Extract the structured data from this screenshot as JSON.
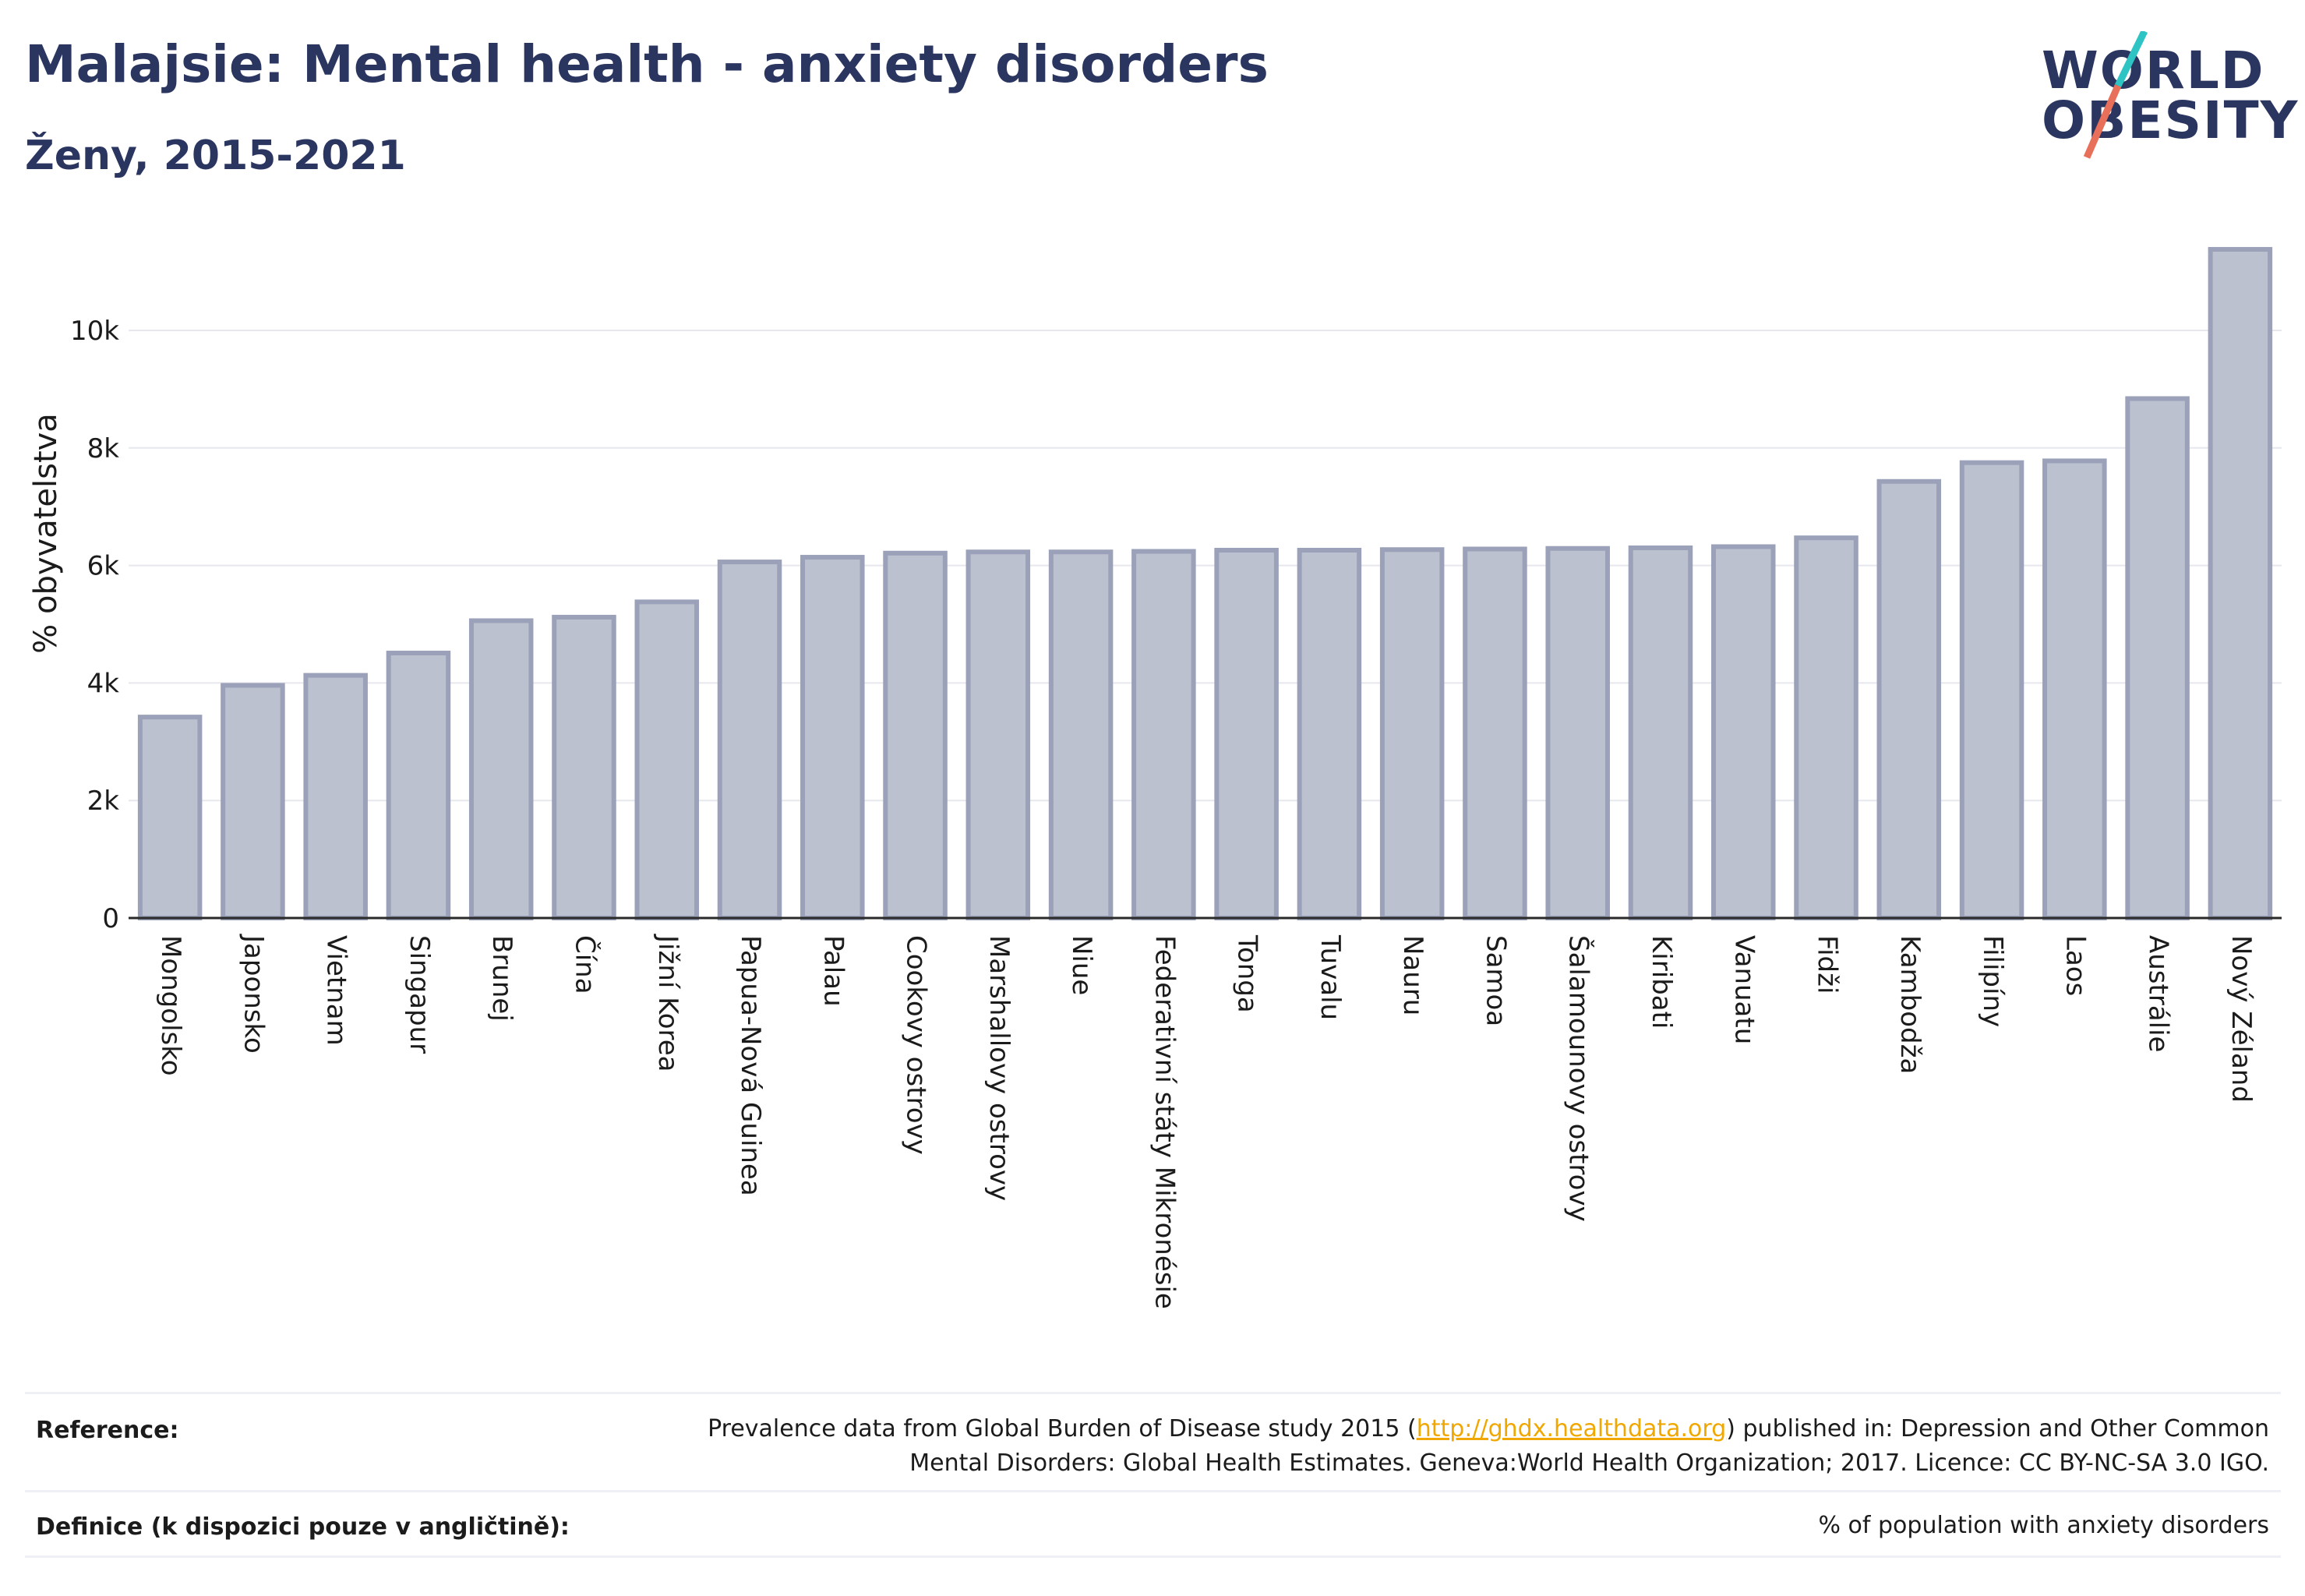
{
  "header": {
    "title": "Malajsie: Mental health - anxiety disorders",
    "subtitle": "Ženy, 2015-2021"
  },
  "logo": {
    "line1": "WORLD",
    "line2": "OBESITY",
    "accent_colors": [
      "#2ec4c4",
      "#e8705a"
    ]
  },
  "chart_data": {
    "type": "bar",
    "title": "",
    "xlabel": "",
    "ylabel": "% obyvatelstva",
    "ylim": [
      0,
      11500
    ],
    "yticks": [
      0,
      2000,
      4000,
      6000,
      8000,
      10000
    ],
    "ytick_labels": [
      "0",
      "2k",
      "4k",
      "6k",
      "8k",
      "10k"
    ],
    "grid": true,
    "bar_color": "#bcc1d0",
    "bar_edge_color": "#9aa1b8",
    "categories": [
      "Mongolsko",
      "Japonsko",
      "Vietnam",
      "Singapur",
      "Brunej",
      "Čína",
      "Jižní Korea",
      "Papua-Nová Guinea",
      "Palau",
      "Cookovy ostrovy",
      "Marshallovy ostrovy",
      "Niue",
      "Federativní státy Mikronésie",
      "Tonga",
      "Tuvalu",
      "Nauru",
      "Samoa",
      "Šalamounovy ostrovy",
      "Kiribati",
      "Vanuatu",
      "Fidži",
      "Kambodža",
      "Filipíny",
      "Laos",
      "Austrálie",
      "Nový Zéland"
    ],
    "values": [
      3420,
      3960,
      4130,
      4510,
      5060,
      5120,
      5380,
      6060,
      6140,
      6210,
      6230,
      6230,
      6240,
      6260,
      6260,
      6270,
      6280,
      6290,
      6300,
      6320,
      6470,
      7430,
      7750,
      7780,
      8840,
      11380
    ]
  },
  "footer": {
    "reference_label": "Reference:",
    "reference_text_before": "Prevalence data from Global Burden of Disease study 2015 (",
    "reference_link": "http://ghdx.healthdata.org",
    "reference_text_after": ") published in: Depression and Other Common",
    "reference_line2": "Mental Disorders: Global Health Estimates. Geneva:World Health Organization; 2017. Licence: CC BY-NC-SA 3.0 IGO.",
    "definition_label": "Definice (k dispozici pouze v angličtině):",
    "definition_text": "% of population with anxiety disorders"
  }
}
